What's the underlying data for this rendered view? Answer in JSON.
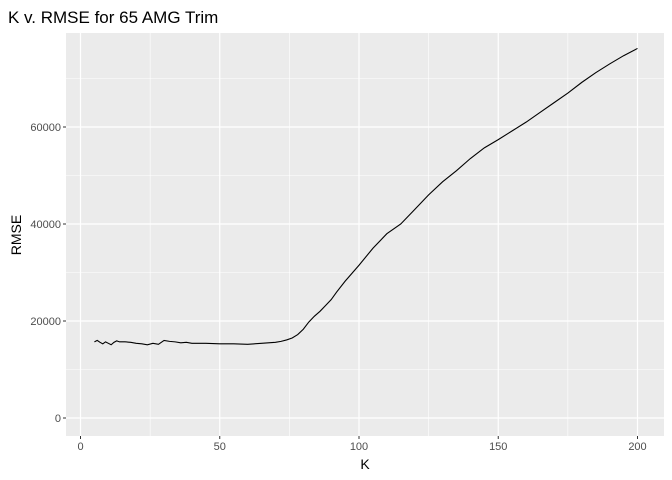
{
  "chart_data": {
    "type": "line",
    "title": "K v. RMSE for 65 AMG Trim",
    "xlabel": "K",
    "ylabel": "RMSE",
    "xlim": [
      0,
      200
    ],
    "ylim": [
      0,
      75000
    ],
    "x_ticks": [
      0,
      50,
      100,
      150,
      200
    ],
    "y_ticks": [
      0,
      20000,
      40000,
      60000
    ],
    "grid": true,
    "legend": "none",
    "colors": {
      "panel": "#ebebeb",
      "grid": "#ffffff",
      "line": "#000000"
    },
    "series": [
      {
        "x": [
          5,
          6,
          7,
          8,
          9,
          10,
          11,
          12,
          13,
          14,
          16,
          18,
          20,
          22,
          24,
          26,
          28,
          30,
          32,
          34,
          36,
          38,
          40,
          45,
          50,
          55,
          60,
          65,
          70,
          72,
          74,
          76,
          78,
          80,
          82,
          84,
          86,
          88,
          90,
          92,
          95,
          100,
          105,
          110,
          115,
          120,
          125,
          130,
          135,
          140,
          145,
          150,
          155,
          160,
          165,
          170,
          175,
          180,
          185,
          190,
          195,
          200
        ],
        "y": [
          15700,
          16000,
          15600,
          15300,
          15700,
          15400,
          15100,
          15600,
          15900,
          15700,
          15700,
          15600,
          15400,
          15300,
          15100,
          15400,
          15200,
          16000,
          15800,
          15700,
          15500,
          15600,
          15400,
          15400,
          15300,
          15300,
          15200,
          15400,
          15600,
          15800,
          16100,
          16500,
          17200,
          18300,
          19800,
          21000,
          22000,
          23200,
          24400,
          26000,
          28200,
          31500,
          35000,
          38000,
          40000,
          43000,
          46000,
          48700,
          51000,
          53500,
          55700,
          57400,
          59200,
          61000,
          63000,
          65000,
          67000,
          69200,
          71200,
          73000,
          74700,
          76200
        ]
      }
    ]
  }
}
